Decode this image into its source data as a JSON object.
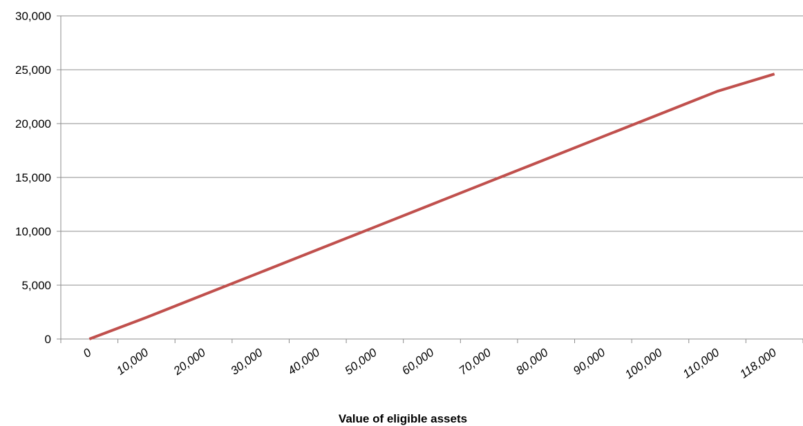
{
  "chart_data": {
    "type": "line",
    "title": "",
    "xlabel": "Value of eligible assets",
    "ylabel": "",
    "categories": [
      "0",
      "10,000",
      "20,000",
      "30,000",
      "40,000",
      "50,000",
      "60,000",
      "70,000",
      "80,000",
      "90,000",
      "100,000",
      "110,000",
      "118,000"
    ],
    "series": [
      {
        "color": "#c0504d",
        "values": [
          0,
          2000,
          4100,
          6200,
          8300,
          10400,
          12500,
          14600,
          16700,
          18800,
          20900,
          23000,
          24600
        ]
      }
    ],
    "y_ticks": [
      "0",
      "5,000",
      "10,000",
      "15,000",
      "20,000",
      "25,000",
      "30,000"
    ],
    "ylim": [
      0,
      30000
    ],
    "grid": true,
    "legend": "none"
  }
}
